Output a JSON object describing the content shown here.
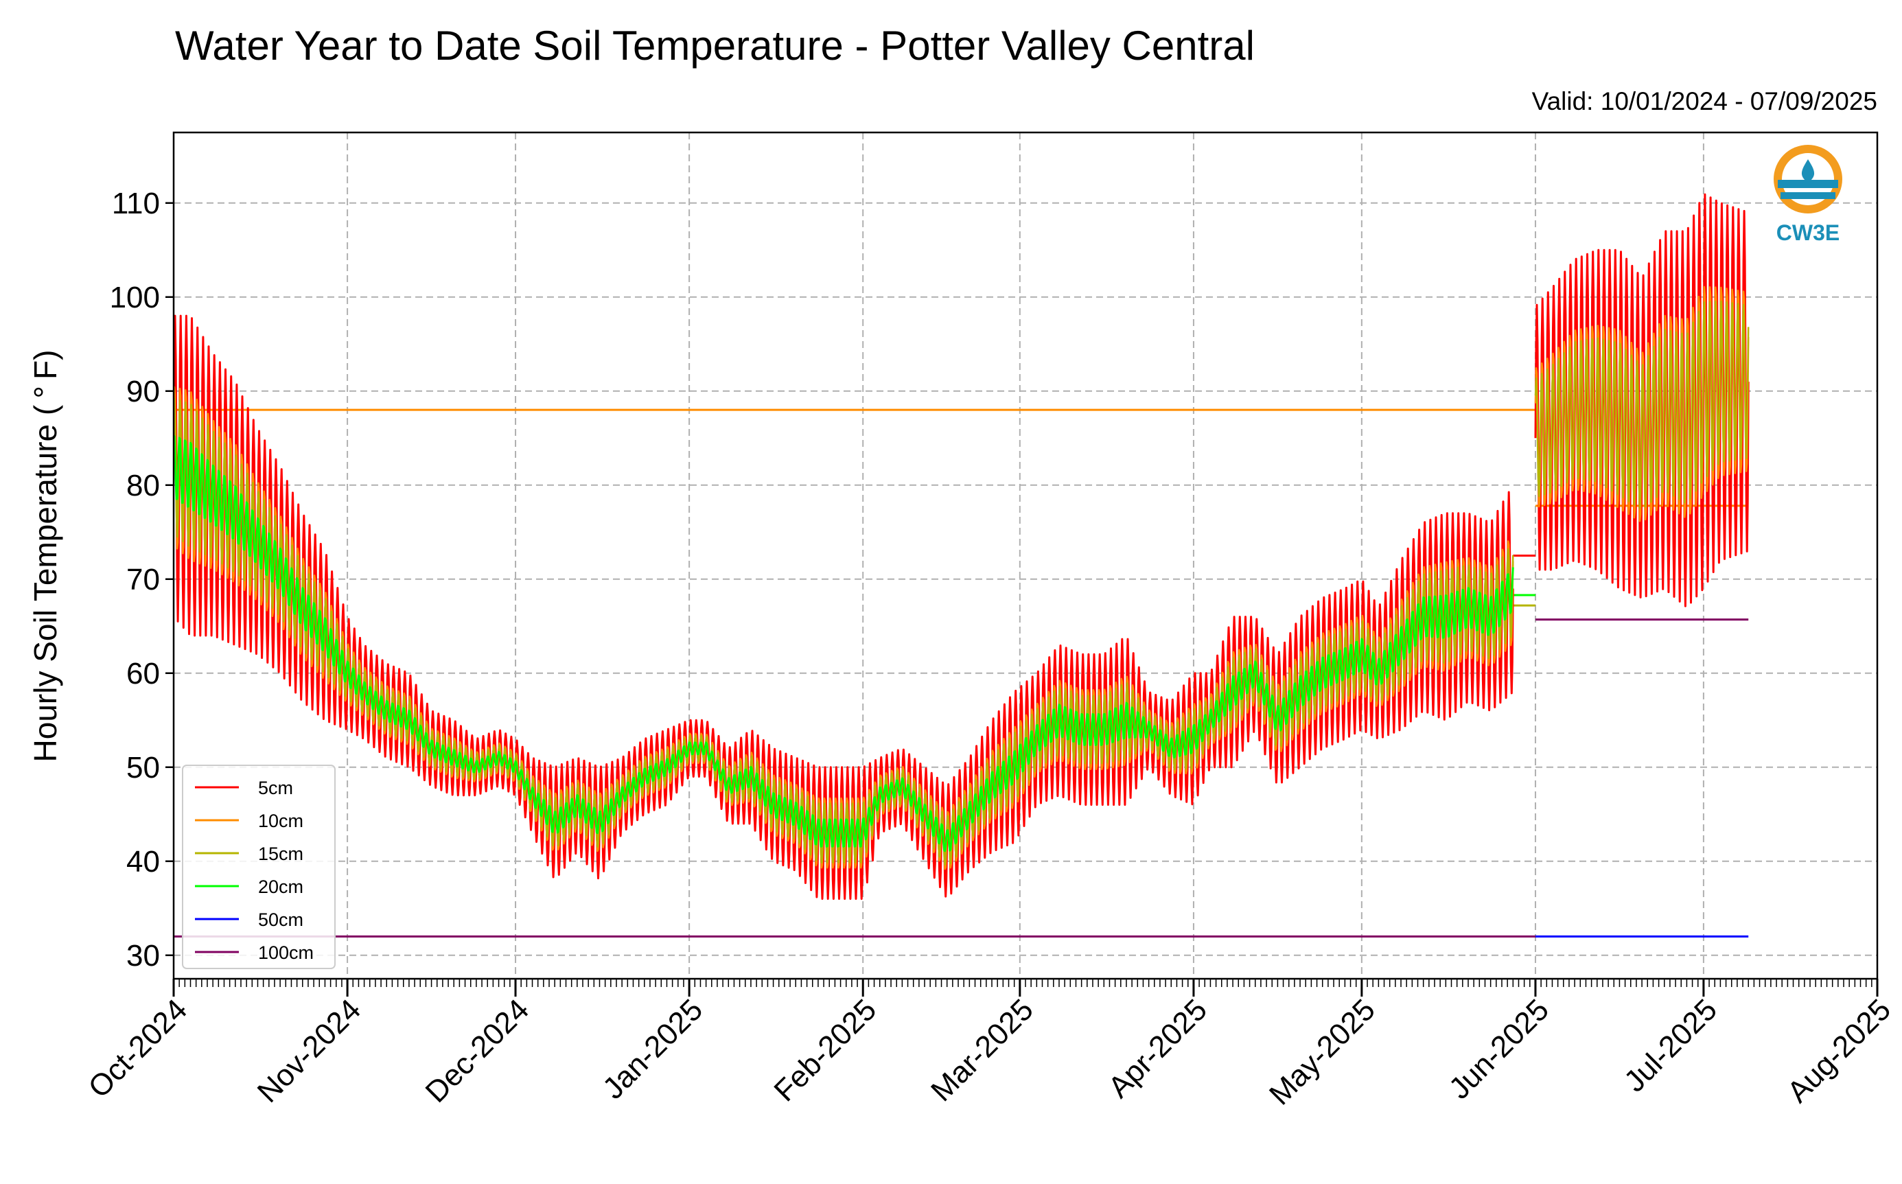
{
  "chart_data": {
    "type": "line",
    "title": "Water Year to Date Soil Temperature - Potter Valley Central",
    "subtitle": "Valid: 10/01/2024 - 07/09/2025",
    "ylabel": "Hourly Soil Temperature ( ° F)",
    "xlabel": "",
    "ylim": [
      27.5,
      117.5
    ],
    "xlim": [
      "2024-10-01",
      "2025-08-01"
    ],
    "yticks": [
      30,
      40,
      50,
      60,
      70,
      80,
      90,
      100,
      110
    ],
    "xtick_labels": [
      "Oct-2024",
      "Nov-2024",
      "Dec-2024",
      "Jan-2025",
      "Feb-2025",
      "Mar-2025",
      "Apr-2025",
      "May-2025",
      "Jun-2025",
      "Jul-2025",
      "Aug-2025"
    ],
    "xtick_dates": [
      "2024-10-01",
      "2024-11-01",
      "2024-12-01",
      "2025-01-01",
      "2025-02-01",
      "2025-03-01",
      "2025-04-01",
      "2025-05-01",
      "2025-06-01",
      "2025-07-01",
      "2025-08-01"
    ],
    "grid": true,
    "legend_position": "lower-left",
    "logo_text": "CW3E",
    "series": [
      {
        "name": "5cm",
        "color": "#ff0000",
        "segments": [
          {
            "x": [
              "2024-10-01",
              "2024-10-04",
              "2024-10-08",
              "2024-10-12",
              "2024-10-16",
              "2024-10-20",
              "2024-10-24",
              "2024-10-28",
              "2024-11-01",
              "2024-11-04",
              "2024-11-08",
              "2024-11-12",
              "2024-11-16",
              "2024-11-20",
              "2024-11-24",
              "2024-11-28",
              "2024-12-01",
              "2024-12-04",
              "2024-12-08",
              "2024-12-12",
              "2024-12-16",
              "2024-12-20",
              "2024-12-24",
              "2024-12-28",
              "2025-01-01",
              "2025-01-04",
              "2025-01-08",
              "2025-01-12",
              "2025-01-16",
              "2025-01-20",
              "2025-01-24",
              "2025-01-28",
              "2025-02-01",
              "2025-02-04",
              "2025-02-08",
              "2025-02-12",
              "2025-02-16",
              "2025-02-20",
              "2025-02-24",
              "2025-02-28",
              "2025-03-04",
              "2025-03-08",
              "2025-03-12",
              "2025-03-16",
              "2025-03-20",
              "2025-03-24",
              "2025-03-28",
              "2025-04-01",
              "2025-04-04",
              "2025-04-08",
              "2025-04-12",
              "2025-04-16",
              "2025-04-20",
              "2025-04-24",
              "2025-04-28",
              "2025-05-01",
              "2025-05-04",
              "2025-05-08",
              "2025-05-12",
              "2025-05-16",
              "2025-05-20",
              "2025-05-24",
              "2025-05-28"
            ],
            "mid": [
              82,
              81,
              79,
              77,
              74,
              71,
              67,
              64,
              60,
              58,
              56,
              55,
              52,
              51,
              50,
              51,
              50,
              47,
              44,
              46,
              44,
              47,
              49,
              50,
              52,
              52,
              48,
              49,
              46,
              45,
              43,
              43,
              43,
              47,
              48,
              45,
              42,
              45,
              48,
              50,
              53,
              55,
              54,
              54,
              55,
              54,
              52,
              53,
              55,
              58,
              60,
              55,
              58,
              60,
              61,
              62,
              60,
              63,
              66,
              66,
              67,
              66,
              69
            ],
            "amp": [
              16,
              17,
              15,
              14,
              12,
              11,
              10,
              9,
              6,
              5,
              5,
              5,
              4,
              4,
              3,
              3,
              3,
              4,
              6,
              5,
              6,
              4,
              4,
              4,
              3,
              3,
              4,
              5,
              6,
              6,
              7,
              7,
              7,
              4,
              4,
              5,
              6,
              6,
              7,
              8,
              7,
              8,
              8,
              8,
              9,
              4,
              5,
              7,
              5,
              8,
              6,
              7,
              8,
              8,
              8,
              8,
              7,
              9,
              10,
              11,
              10,
              10,
              11
            ]
          },
          {
            "x": [
              "2025-06-01",
              "2025-06-04",
              "2025-06-08",
              "2025-06-12",
              "2025-06-16",
              "2025-06-20",
              "2025-06-24",
              "2025-06-28",
              "2025-07-01",
              "2025-07-04",
              "2025-07-09"
            ],
            "mid": [
              85,
              86,
              88,
              88,
              87,
              85,
              88,
              87,
              90,
              91,
              91
            ],
            "amp": [
              14,
              15,
              16,
              17,
              18,
              17,
              19,
              20,
              21,
              19,
              18
            ]
          },
          {
            "flat": true,
            "x": [
              "2025-05-28",
              "2025-06-01"
            ],
            "y": [
              72.5,
              72.5
            ]
          }
        ]
      },
      {
        "name": "10cm",
        "color": "#ff8c00",
        "flat_value": 88,
        "x_range": [
          "2024-10-01",
          "2025-06-01"
        ],
        "overlap_note": ""
      },
      {
        "name": "15cm",
        "color": "#b5b500",
        "flat_value": 67.2,
        "x_range": [
          "2025-05-28",
          "2025-06-01"
        ]
      },
      {
        "name": "20cm",
        "color": "#00ff00",
        "flat_value": 68.3,
        "x_range": [
          "2025-05-28",
          "2025-06-01"
        ]
      },
      {
        "name": "50cm",
        "color": "#0000ff",
        "flat_value": 32,
        "x_range": [
          "2025-06-01",
          "2025-07-09"
        ]
      },
      {
        "name": "100cm",
        "color": "#800060",
        "flat_value": 32,
        "x_range": [
          "2024-10-01",
          "2025-06-01"
        ],
        "flat_value_2": 65.7,
        "x_range_2": [
          "2025-06-01",
          "2025-07-09"
        ]
      }
    ],
    "extra_flat": {
      "orange_late": 77.8,
      "orange_late_range": [
        "2025-06-01",
        "2025-07-09"
      ]
    }
  }
}
